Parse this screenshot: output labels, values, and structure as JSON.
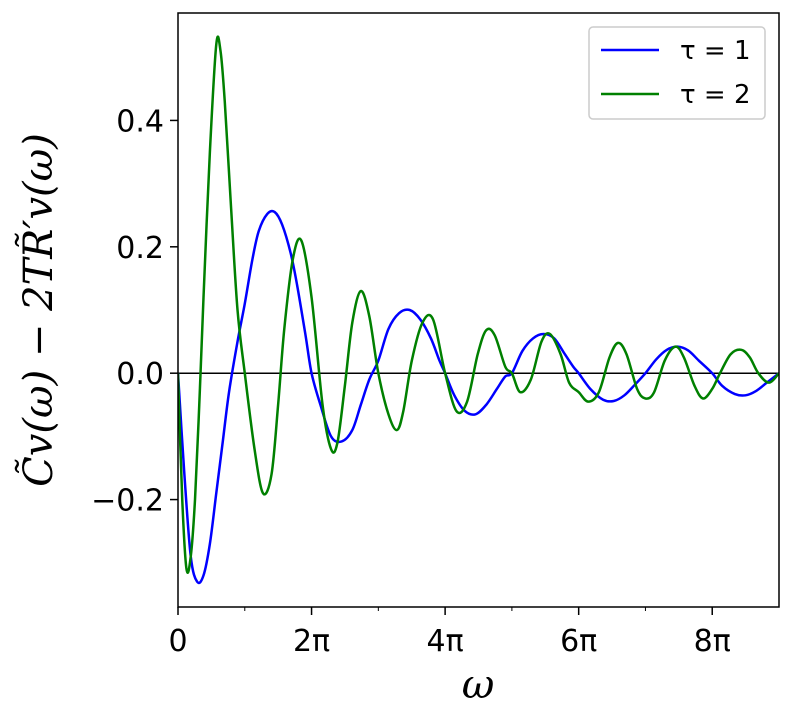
{
  "chart_data": {
    "type": "line",
    "xlabel": "ω",
    "ylabel": "C̃v(ω) − 2TR̃′v(ω)",
    "xlim": [
      0,
      28.274
    ],
    "ylim": [
      -0.37,
      0.57
    ],
    "x_ticks": [
      {
        "value": 0,
        "label": "0"
      },
      {
        "value": 6.2832,
        "label": "2π"
      },
      {
        "value": 12.5664,
        "label": "4π"
      },
      {
        "value": 18.8496,
        "label": "6π"
      },
      {
        "value": 25.1327,
        "label": "8π"
      }
    ],
    "x_minor_ticks": [
      3.1416,
      9.4248,
      15.708,
      21.9911
    ],
    "y_ticks": [
      {
        "value": -0.2,
        "label": "−0.2"
      },
      {
        "value": 0.0,
        "label": "0.0"
      },
      {
        "value": 0.2,
        "label": "0.2"
      },
      {
        "value": 0.4,
        "label": "0.4"
      }
    ],
    "zero_line": true,
    "grid": false,
    "legend": "top-right",
    "series": [
      {
        "name": "τ = 1",
        "color": "#0000ff",
        "x": [
          0,
          0.3,
          0.6,
          0.9,
          1.2,
          1.5,
          1.8,
          2.1,
          2.4,
          2.8,
          3.1416,
          3.5,
          3.8,
          4.2,
          4.55,
          4.9,
          5.3,
          5.6,
          6.0,
          6.2832,
          6.7,
          7.2,
          7.7,
          8.2,
          8.6,
          9.0,
          9.4248,
          9.9,
          10.4,
          10.9,
          11.4,
          11.9,
          12.3,
          12.5664,
          13.0,
          13.5,
          14.0,
          14.5,
          15.0,
          15.4,
          15.708,
          16.2,
          16.7,
          17.2,
          17.7,
          18.2,
          18.6,
          18.8496,
          19.4,
          20.0,
          20.5,
          21.0,
          21.5,
          21.99,
          22.5,
          23.0,
          23.5,
          24.0,
          24.5,
          25.13,
          25.6,
          26.2,
          26.7,
          27.2,
          27.7,
          28.274
        ],
        "y": [
          0.0,
          -0.16,
          -0.29,
          -0.33,
          -0.32,
          -0.27,
          -0.19,
          -0.11,
          -0.03,
          0.05,
          0.11,
          0.18,
          0.225,
          0.252,
          0.255,
          0.235,
          0.19,
          0.14,
          0.06,
          0.0,
          -0.05,
          -0.1,
          -0.108,
          -0.09,
          -0.05,
          -0.01,
          0.02,
          0.07,
          0.095,
          0.1,
          0.085,
          0.055,
          0.02,
          0.0,
          -0.035,
          -0.06,
          -0.065,
          -0.05,
          -0.025,
          -0.005,
          0.0,
          0.035,
          0.055,
          0.062,
          0.055,
          0.03,
          0.01,
          0.0,
          -0.025,
          -0.042,
          -0.044,
          -0.035,
          -0.018,
          0.0,
          0.022,
          0.037,
          0.042,
          0.036,
          0.02,
          0.0,
          -0.02,
          -0.033,
          -0.035,
          -0.028,
          -0.015,
          0.0
        ]
      },
      {
        "name": "τ = 2",
        "color": "#008000",
        "x": [
          0,
          0.2,
          0.4,
          0.6,
          0.8,
          1.0,
          1.2,
          1.5,
          1.8,
          2.0,
          2.2,
          2.5,
          2.8,
          3.1416,
          3.6,
          4.0,
          4.4,
          4.71,
          5.0,
          5.4,
          5.8,
          6.2832,
          6.8,
          7.2,
          7.5,
          7.85,
          8.2,
          8.6,
          9.0,
          9.4248,
          9.9,
          10.3,
          10.6,
          11.0,
          11.5,
          12.0,
          12.5664,
          13.1,
          13.6,
          14.1,
          14.5,
          14.9,
          15.4,
          15.708,
          16.1,
          16.6,
          17.1,
          17.5,
          18.0,
          18.4,
          18.8496,
          19.3,
          19.8,
          20.3,
          20.7,
          21.1,
          21.6,
          21.99,
          22.4,
          22.9,
          23.4,
          23.8,
          24.3,
          24.7,
          25.13,
          25.5,
          26.0,
          26.5,
          26.9,
          27.3,
          27.8,
          28.274
        ],
        "y": [
          0.0,
          -0.2,
          -0.31,
          -0.29,
          -0.2,
          -0.05,
          0.12,
          0.35,
          0.52,
          0.51,
          0.43,
          0.26,
          0.1,
          0.0,
          -0.12,
          -0.19,
          -0.16,
          -0.05,
          0.07,
          0.18,
          0.21,
          0.12,
          -0.05,
          -0.12,
          -0.11,
          -0.02,
          0.08,
          0.13,
          0.09,
          0.0,
          -0.065,
          -0.09,
          -0.06,
          0.02,
          0.08,
          0.085,
          0.0,
          -0.06,
          -0.045,
          0.03,
          0.068,
          0.06,
          0.01,
          0.0,
          -0.03,
          -0.01,
          0.05,
          0.062,
          0.03,
          -0.015,
          -0.03,
          -0.045,
          -0.03,
          0.025,
          0.048,
          0.03,
          -0.025,
          -0.04,
          -0.03,
          0.02,
          0.042,
          0.025,
          -0.02,
          -0.04,
          -0.025,
          0.0,
          0.03,
          0.037,
          0.025,
          0.0,
          -0.015,
          0.0
        ]
      }
    ]
  }
}
